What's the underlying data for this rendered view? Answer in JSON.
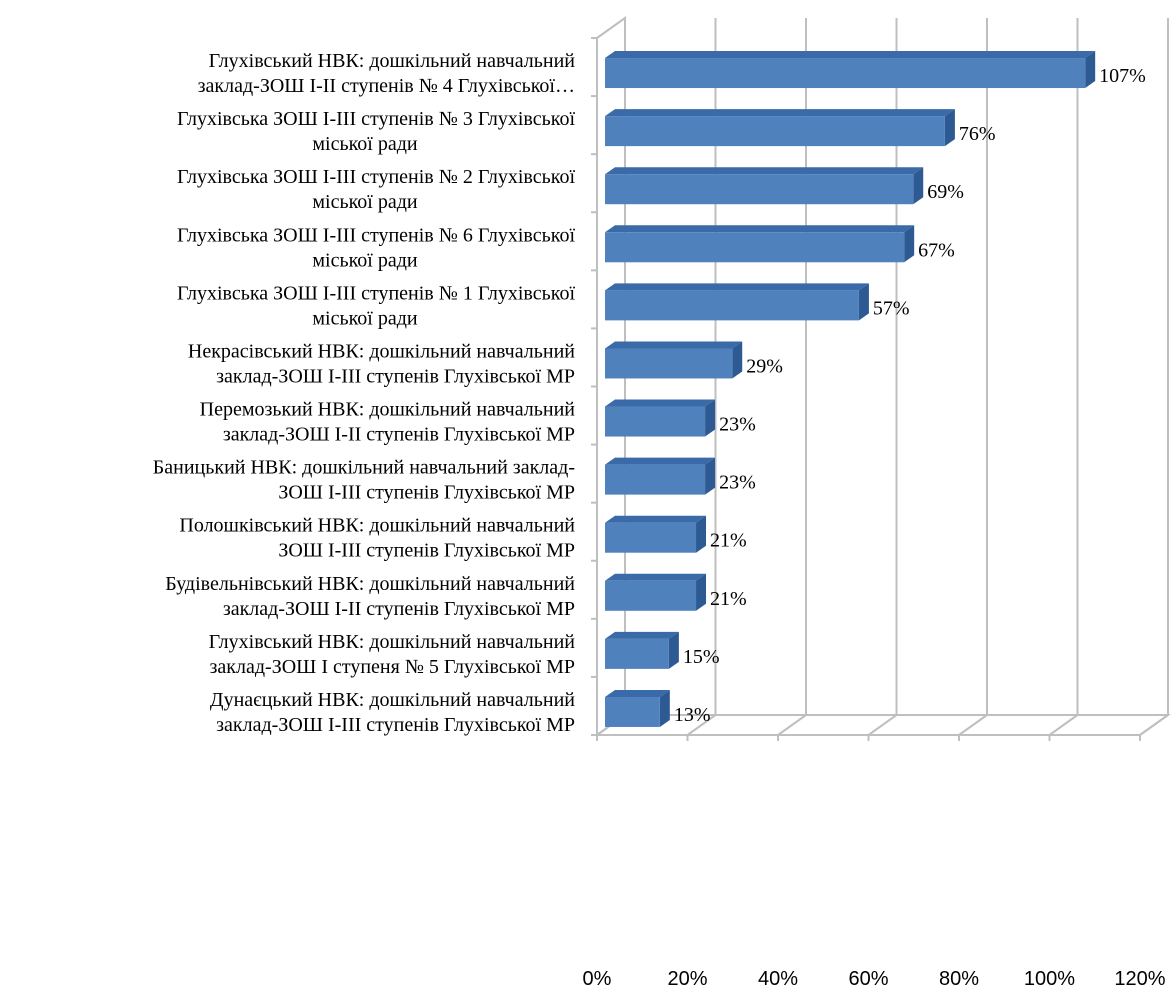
{
  "chart_data": {
    "type": "bar",
    "orientation": "horizontal",
    "three_d": true,
    "title": "",
    "xlabel": "",
    "ylabel": "",
    "xlim": [
      0,
      120
    ],
    "grid": true,
    "legend": "none",
    "bar_color": "#4F81BD",
    "ticks": [
      "0%",
      "20%",
      "40%",
      "60%",
      "80%",
      "100%",
      "120%"
    ],
    "categories": [
      [
        "Глухівський НВК: дошкільний навчальний",
        "заклад-ЗОШ І-ІІ ступенів № 4 Глухівської…"
      ],
      [
        "Глухівська ЗОШ І-ІІІ ступенів № 3 Глухівської",
        "міської ради"
      ],
      [
        "Глухівська ЗОШ І-ІІІ ступенів № 2 Глухівської",
        "міської ради"
      ],
      [
        "Глухівська ЗОШ І-ІІІ ступенів № 6 Глухівської",
        "міської ради"
      ],
      [
        "Глухівська ЗОШ І-ІІІ ступенів  № 1 Глухівської",
        "міської ради"
      ],
      [
        "Некрасівський НВК: дошкільний навчальний",
        "заклад-ЗОШ І-ІІІ ступенів Глухівської МР"
      ],
      [
        "Перемозький НВК: дошкільний навчальний",
        "заклад-ЗОШ І-ІІ ступенів Глухівської МР"
      ],
      [
        "Баницький НВК: дошкільний навчальний заклад-",
        "ЗОШ І-ІІІ ступенів Глухівської МР"
      ],
      [
        "Полошківський НВК: дошкільний навчальний",
        "ЗОШ І-ІІІ ступенів Глухівської МР"
      ],
      [
        "Будівельнівський НВК: дошкільний навчальний",
        "заклад-ЗОШ І-ІІ ступенів Глухівської МР"
      ],
      [
        "Глухівський НВК: дошкільний навчальний",
        "заклад-ЗОШ І ступеня № 5 Глухівської МР"
      ],
      [
        "Дунаєцький НВК: дошкільний навчальний",
        "заклад-ЗОШ І-ІІІ ступенів Глухівської МР"
      ]
    ],
    "values": [
      107,
      76,
      69,
      67,
      57,
      29,
      23,
      23,
      21,
      21,
      15,
      13
    ],
    "value_labels": [
      "107%",
      "76%",
      "69%",
      "67%",
      "57%",
      "29%",
      "23%",
      "23%",
      "21%",
      "21%",
      "15%",
      "13%"
    ]
  }
}
